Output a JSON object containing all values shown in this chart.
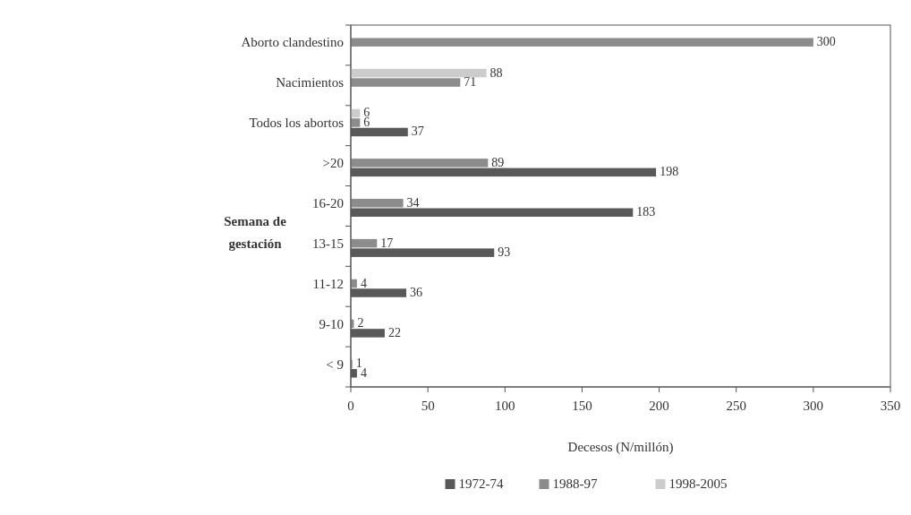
{
  "chart_data": {
    "type": "bar",
    "orientation": "horizontal",
    "xlabel": "Decesos (N/millón)",
    "ylabel": "Semana de gestación",
    "categories": [
      "Aborto clandestino",
      "Nacimientos",
      "Todos los abortos",
      ">20",
      "16-20",
      "13-15",
      "11-12",
      "9-10",
      "< 9"
    ],
    "series": [
      {
        "name": "1972-74",
        "color": "#595959",
        "values": [
          null,
          null,
          37,
          198,
          183,
          93,
          36,
          22,
          4
        ]
      },
      {
        "name": "1988-97",
        "color": "#8c8c8c",
        "values": [
          300,
          71,
          6,
          89,
          34,
          17,
          4,
          2,
          1
        ]
      },
      {
        "name": "1998-2005",
        "color": "#cccccc",
        "values": [
          null,
          88,
          6,
          null,
          null,
          null,
          null,
          null,
          null
        ]
      }
    ],
    "xlim": [
      0,
      350
    ],
    "xticks": [
      0,
      50,
      100,
      150,
      200,
      250,
      300,
      350
    ],
    "data_labels": true,
    "legend": "bottom",
    "grid": false
  }
}
